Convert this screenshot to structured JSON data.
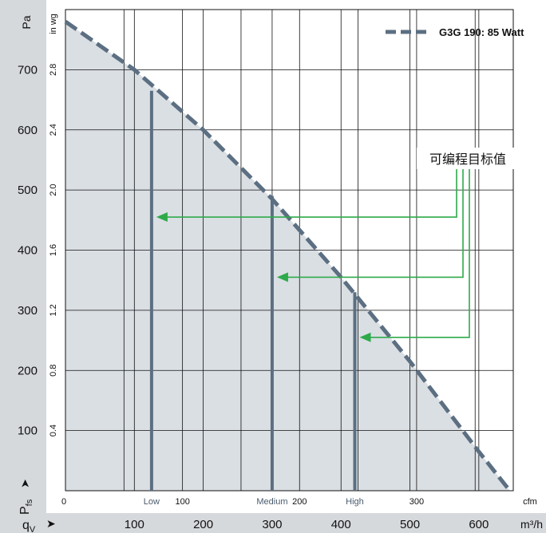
{
  "chart_data": {
    "type": "line",
    "series": [
      {
        "name": "G3G 190: 85 Watt",
        "x": [
          0,
          100,
          200,
          300,
          400,
          500,
          600,
          645
        ],
        "y": [
          780,
          700,
          600,
          485,
          355,
          215,
          65,
          0
        ],
        "color": "#5c6f82",
        "style": "dashed"
      }
    ],
    "speed_lines": [
      {
        "label": "Low",
        "x": 125,
        "y": 665
      },
      {
        "label": "Medium",
        "x": 300,
        "y": 490
      },
      {
        "label": "High",
        "x": 420,
        "y": 330
      }
    ],
    "target_arrows_y": [
      455,
      355,
      255
    ],
    "annotation": "可编程目标值",
    "y_left_label": "Pa",
    "y_left_ticks": [
      "100",
      "200",
      "300",
      "400",
      "500",
      "600",
      "700"
    ],
    "y_inner_label": "in wg",
    "y_inner_ticks": [
      "0.4",
      "0.8",
      "1.2",
      "1.6",
      "2.0",
      "2.4",
      "2.8"
    ],
    "x_bottom_label": "m³/h",
    "x_bottom_ticks": [
      "100",
      "200",
      "300",
      "400",
      "500",
      "600"
    ],
    "x_inner_label": "cfm",
    "x_inner_ticks": [
      "0",
      "100",
      "200",
      "300"
    ],
    "pressure_symbol": "P",
    "pressure_sub": "fs",
    "flow_symbol": "q",
    "flow_sub": "V",
    "xlim": [
      0,
      650
    ],
    "ylim": [
      0,
      800
    ],
    "grid": true,
    "legend_position": "top-right"
  },
  "colors": {
    "frame_band": "#d6d9dc",
    "fill": "#dadfe4",
    "curve": "#5c6f82",
    "speed_line": "#5c6f82",
    "arrow": "#2eaa4a",
    "grid": "#111111"
  }
}
